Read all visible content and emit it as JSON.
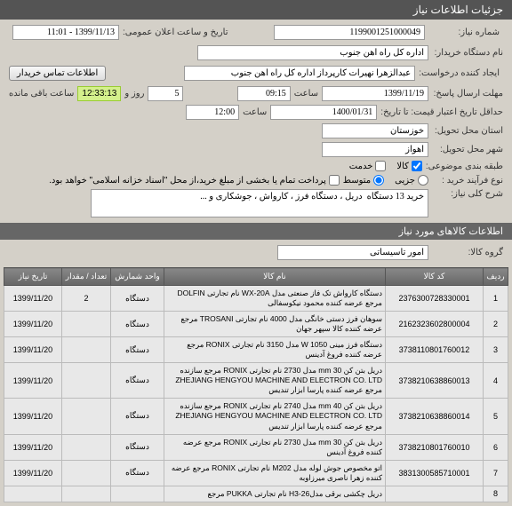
{
  "header": "جزئیات اطلاعات نیاز",
  "labels": {
    "need_no": "شماره نیاز:",
    "public_datetime": "تاریخ و ساعت اعلان عمومی:",
    "buyer_org": "نام دستگاه خریدار:",
    "creator": "ایجاد کننده درخواست:",
    "buyer_contact_btn": "اطلاعات تماس خریدار",
    "deadline": "مهلت ارسال پاسخ:",
    "time": "ساعت",
    "day_and": "روز و",
    "remaining": "ساعت باقی مانده",
    "price_valid": "حداقل تاریخ اعتبار قیمت: تا تاریخ:",
    "province": "استان محل تحویل:",
    "city": "شهر محل تحویل:",
    "budget_class": "طبقه بندی موضوعی:",
    "goods": "کالا",
    "service": "خدمت",
    "purchase_type": "نوع فرآیند خرید :",
    "low": "جزیی",
    "medium": "متوسط",
    "note": "پرداخت تمام یا بخشی از مبلغ خرید،از محل \"اسناد خزانه اسلامی\" خواهد بود.",
    "need_desc": "شرح کلی نیاز:",
    "items_info": "اطلاعات کالاهای مورد نیاز",
    "goods_group": "گروه کالا:"
  },
  "values": {
    "need_no": "1199001251000049",
    "public_date": "1399/11/13 - 11:01",
    "buyer_org": "اداره کل راه آهن جنوب",
    "creator": "عبدالزهرا نهیرات کارپرداز اداره کل راه آهن جنوب",
    "deadline_date": "1399/11/19",
    "deadline_time": "09:15",
    "days": "5",
    "countdown": "12:33:13",
    "price_date": "1400/01/31",
    "price_time": "12:00",
    "province": "خوزستان",
    "city": "اهواز",
    "desc": "خرید 13 دستگاه  دریل ، دستگاه فرز ، کارواش ، جوشکاری و ...",
    "goods_group": "امور تاسیساتی"
  },
  "table": {
    "headers": [
      "ردیف",
      "کد کالا",
      "نام کالا",
      "واحد شمارش",
      "تعداد / مقدار",
      "تاریخ نیاز"
    ],
    "rows": [
      {
        "r": "1",
        "code": "2376300728330001",
        "name": "دستگاه کارواش تک فاز صنعتی مدل WX-20A نام تجارتی DOLFIN مرجع عرضه کننده محمود نیکوسفالی",
        "unit": "دستگاه",
        "qty": "2",
        "date": "1399/11/20"
      },
      {
        "r": "2",
        "code": "2162323602800004",
        "name": "سوهان فرز دستی خانگی مدل 4000 نام تجارتی TROSANI مرجع عرضه کننده کالا سپهر جهان",
        "unit": "دستگاه",
        "qty": "",
        "date": "1399/11/20"
      },
      {
        "r": "3",
        "code": "3738110801760012",
        "name": "دستگاه فرز مینی 1050 W مدل 3150 نام تجارتی RONIX مرجع عرضه کننده فروغ آدینس",
        "unit": "دستگاه",
        "qty": "",
        "date": "1399/11/20"
      },
      {
        "r": "4",
        "code": "3738210638860013",
        "name": "دریل بتن کن 30 mm مدل 2730 نام تجارتی RONIX مرجع سازنده ZHEJIANG HENGYOU MACHINE AND ELECTRON CO. LTD مرجع عرضه کننده پارسا ابزار تندیس",
        "unit": "دستگاه",
        "qty": "",
        "date": "1399/11/20"
      },
      {
        "r": "5",
        "code": "3738210638860014",
        "name": "دریل بتن کن 40 mm مدل 2740 نام تجارتی RONIX مرجع سازنده ZHEJIANG HENGYOU MACHINE AND ELECTRON CO. LTD مرجع عرضه کننده پارسا ابزار تندیس",
        "unit": "دستگاه",
        "qty": "",
        "date": "1399/11/20"
      },
      {
        "r": "6",
        "code": "3738210801760010",
        "name": "دریل بتن کن 30 mm مدل 2730 نام تجارتی RONIX مرجع عرضه کننده فروغ آدینس",
        "unit": "دستگاه",
        "qty": "",
        "date": "1399/11/20"
      },
      {
        "r": "7",
        "code": "3831300585710001",
        "name": "اتو مخصوص جوش لوله مدل M202 نام تجارتی RONIX مرجع عرضه کننده زهرا ناصری میرزاوبه",
        "unit": "دستگاه",
        "qty": "",
        "date": "1399/11/20"
      },
      {
        "r": "8",
        "code": "",
        "name": "دریل چکشی برقی مدلH3-26 نام تجارتی PUKKA مرجع",
        "unit": "",
        "qty": "",
        "date": ""
      }
    ]
  }
}
